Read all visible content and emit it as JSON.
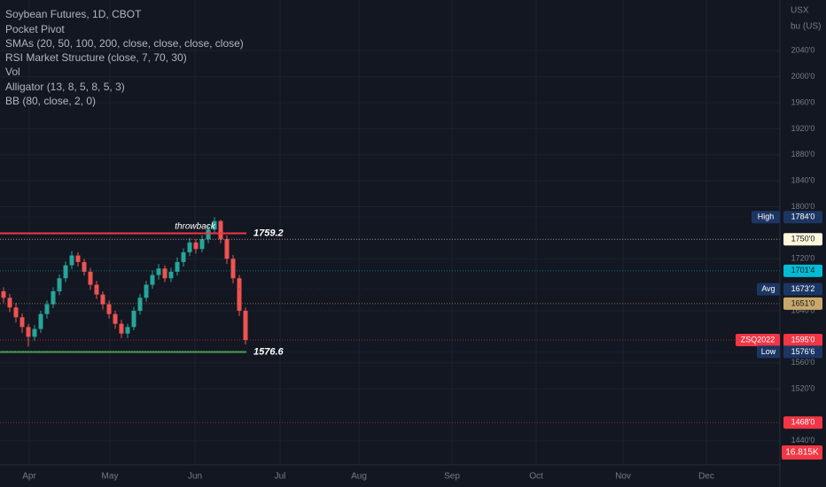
{
  "chart_data": {
    "type": "candlestick",
    "title": "Soybean Futures, 1D, CBOT",
    "indicators": [
      "Pocket Pivot",
      "SMAs (20, 50, 100, 200, close, close, close, close)",
      "RSI Market Structure (close, 7, 70, 30)",
      "Vol",
      "Alligator (13, 8, 5, 8, 5, 3)",
      "BB (80, close, 2, 0)"
    ],
    "currency": "USX",
    "unit": "bu (US)",
    "months": [
      "Apr",
      "May",
      "Jun",
      "Jul",
      "Aug",
      "Sep",
      "Oct",
      "Nov",
      "Dec"
    ],
    "annotation": "throwback",
    "ylim": [
      1403,
      2118
    ],
    "yticks": [
      {
        "value": 2040,
        "label": "2040'0"
      },
      {
        "value": 2000,
        "label": "2000'0"
      },
      {
        "value": 1960,
        "label": "1960'0"
      },
      {
        "value": 1920,
        "label": "1920'0"
      },
      {
        "value": 1880,
        "label": "1880'0"
      },
      {
        "value": 1840,
        "label": "1840'0"
      },
      {
        "value": 1800,
        "label": "1800'0"
      },
      {
        "value": 1720,
        "label": "1720'0"
      },
      {
        "value": 1640,
        "label": "1640'0"
      },
      {
        "value": 1560,
        "label": "1560'0"
      },
      {
        "value": 1520,
        "label": "1520'0"
      },
      {
        "value": 1440,
        "label": "1440'0"
      }
    ],
    "grid": true,
    "up_color": "#26a69a",
    "down_color": "#ef5350",
    "open": [
      1670,
      1660,
      1645,
      1630,
      1615,
      1600,
      1612,
      1635,
      1650,
      1670,
      1690,
      1710,
      1725,
      1715,
      1700,
      1680,
      1665,
      1650,
      1635,
      1620,
      1605,
      1615,
      1640,
      1660,
      1680,
      1695,
      1705,
      1690,
      1700,
      1715,
      1730,
      1745,
      1735,
      1750,
      1765,
      1778,
      1750,
      1720,
      1690,
      1640
    ],
    "high": [
      1676,
      1666,
      1652,
      1636,
      1620,
      1618,
      1640,
      1656,
      1676,
      1696,
      1716,
      1732,
      1730,
      1720,
      1706,
      1686,
      1670,
      1656,
      1640,
      1626,
      1620,
      1646,
      1666,
      1686,
      1702,
      1712,
      1710,
      1706,
      1722,
      1736,
      1752,
      1750,
      1756,
      1772,
      1784,
      1780,
      1756,
      1726,
      1695,
      1645
    ],
    "low": [
      1652,
      1638,
      1622,
      1606,
      1585,
      1594,
      1606,
      1628,
      1644,
      1664,
      1684,
      1704,
      1708,
      1694,
      1672,
      1658,
      1642,
      1628,
      1612,
      1598,
      1598,
      1610,
      1634,
      1654,
      1674,
      1688,
      1684,
      1684,
      1694,
      1708,
      1724,
      1728,
      1730,
      1744,
      1758,
      1744,
      1712,
      1682,
      1632,
      1588
    ],
    "close": [
      1660,
      1645,
      1630,
      1615,
      1600,
      1612,
      1635,
      1650,
      1670,
      1690,
      1710,
      1725,
      1715,
      1700,
      1680,
      1665,
      1650,
      1635,
      1620,
      1605,
      1615,
      1640,
      1660,
      1680,
      1695,
      1705,
      1690,
      1700,
      1715,
      1730,
      1745,
      1735,
      1750,
      1765,
      1778,
      1750,
      1720,
      1690,
      1640,
      1595
    ],
    "levels": [
      {
        "value": 1759.2,
        "label": "1759.2",
        "color": "#f23645"
      },
      {
        "value": 1576.6,
        "label": "1576.6",
        "color": "#4caf50"
      }
    ],
    "price_labels": [
      {
        "name": "High",
        "label": "1784'0",
        "value": 1784,
        "color": "#1c3663",
        "text_color": "#ffffff"
      },
      {
        "label": "1750'0",
        "value": 1750,
        "color": "#fff8dc",
        "text_color": "#131722"
      },
      {
        "label": "1701'4",
        "value": 1701.5,
        "color": "#00bcd4",
        "text_color": "#131722"
      },
      {
        "name": "Avg",
        "label": "1673'2",
        "value": 1673.25,
        "color": "#1c3663",
        "text_color": "#ffffff"
      },
      {
        "label": "1651'0",
        "value": 1651,
        "color": "#c8a86a",
        "text_color": "#131722"
      },
      {
        "name": "ZSQ2022",
        "label": "1595'0",
        "value": 1595,
        "color": "#f23645",
        "text_color": "#ffffff"
      },
      {
        "name": "Low",
        "label": "1576'6",
        "value": 1576.75,
        "color": "#1c3663",
        "text_color": "#ffffff"
      },
      {
        "label": "1468'0",
        "value": 1468,
        "color": "#f23645",
        "text_color": "#ffffff"
      }
    ],
    "volume_label": "16.815K"
  }
}
